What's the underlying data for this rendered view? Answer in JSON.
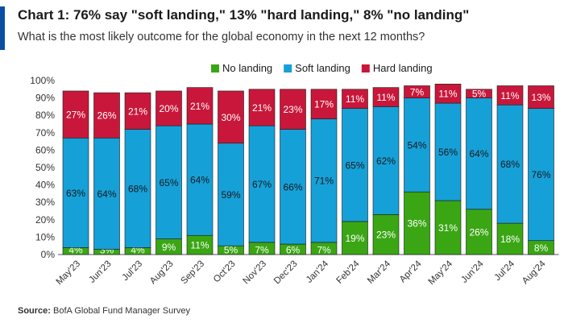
{
  "header": {
    "title": "Chart 1: 76% say \"soft landing,\" 13% \"hard landing,\" 8% \"no landing\"",
    "subtitle": "What is the most likely outcome for the global economy in the next 12 months?"
  },
  "footer": {
    "source_label": "Source:",
    "source_text": "BofA Global Fund Manager Survey"
  },
  "colors": {
    "accent": "#0a4fa3",
    "no_landing": "#3aa614",
    "soft_landing": "#16a0d8",
    "hard_landing": "#c8173a"
  },
  "chart_data": {
    "type": "bar",
    "stacked": true,
    "categories": [
      "May'23",
      "Jun'23",
      "Jul'23",
      "Aug'23",
      "Sep'23",
      "Oct'23",
      "Nov'23",
      "Dec'23",
      "Jan'24",
      "Feb'24",
      "Mar'24",
      "Apr'24",
      "May'24",
      "Jun'24",
      "Jul'24",
      "Aug'24"
    ],
    "series": [
      {
        "name": "No landing",
        "color": "#3aa614",
        "values": [
          4,
          3,
          4,
          9,
          11,
          5,
          7,
          6,
          7,
          19,
          23,
          36,
          31,
          26,
          18,
          8
        ],
        "labels": [
          "4%",
          "3%",
          "4%",
          "9%",
          "11%",
          "5%",
          "7%",
          "6%",
          "7%",
          "19%",
          "23%",
          "36%",
          "31%",
          "26%",
          "18%",
          "8%"
        ]
      },
      {
        "name": "Soft landing",
        "color": "#16a0d8",
        "values": [
          63,
          64,
          68,
          65,
          64,
          59,
          67,
          66,
          71,
          65,
          62,
          54,
          56,
          64,
          68,
          76
        ],
        "labels": [
          "63%",
          "64%",
          "68%",
          "65%",
          "64%",
          "59%",
          "67%",
          "66%",
          "71%",
          "65%",
          "62%",
          "54%",
          "56%",
          "64%",
          "68%",
          "76%"
        ]
      },
      {
        "name": "Hard landing",
        "color": "#c8173a",
        "values": [
          27,
          26,
          21,
          20,
          21,
          30,
          21,
          23,
          17,
          11,
          11,
          7,
          11,
          5,
          11,
          13
        ],
        "labels": [
          "27%",
          "26%",
          "21%",
          "20%",
          "21%",
          "30%",
          "21%",
          "23%",
          "17%",
          "11%",
          "11%",
          "7%",
          "11%",
          "5%",
          "11%",
          "13%"
        ]
      }
    ],
    "yticks": [
      "0%",
      "10%",
      "20%",
      "30%",
      "40%",
      "50%",
      "60%",
      "70%",
      "80%",
      "90%",
      "100%"
    ],
    "ylim": [
      0,
      100
    ],
    "xlabel": "",
    "ylabel": "",
    "legend_position": "top-right",
    "grid": false
  }
}
